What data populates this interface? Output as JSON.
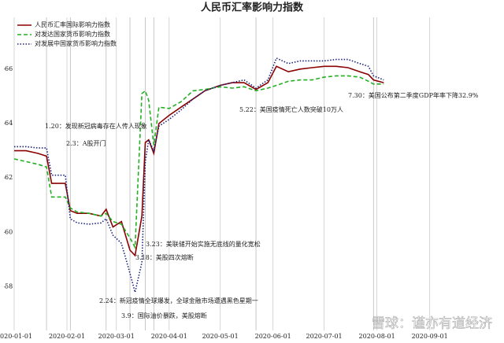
{
  "chart_data": {
    "type": "line",
    "title": "人民币汇率影响力指数",
    "x": [
      "2020-01-01",
      "2020-01-08",
      "2020-01-15",
      "2020-01-20",
      "2020-01-23",
      "2020-01-31",
      "2020-02-03",
      "2020-02-07",
      "2020-02-14",
      "2020-02-21",
      "2020-02-24",
      "2020-02-28",
      "2020-03-04",
      "2020-03-09",
      "2020-03-12",
      "2020-03-16",
      "2020-03-18",
      "2020-03-20",
      "2020-03-23",
      "2020-03-26",
      "2020-04-01",
      "2020-04-08",
      "2020-04-15",
      "2020-04-22",
      "2020-05-01",
      "2020-05-08",
      "2020-05-15",
      "2020-05-22",
      "2020-05-29",
      "2020-06-03",
      "2020-06-10",
      "2020-06-17",
      "2020-06-24",
      "2020-07-01",
      "2020-07-08",
      "2020-07-15",
      "2020-07-22",
      "2020-07-27",
      "2020-07-30",
      "2020-08-05"
    ],
    "series": [
      {
        "name": "人民币汇率国际影响力指数",
        "color": "#8b0000",
        "dash": "solid",
        "values": [
          63.0,
          63.0,
          62.9,
          62.8,
          61.8,
          61.8,
          60.8,
          60.7,
          60.7,
          60.6,
          60.85,
          60.2,
          60.4,
          59.35,
          59.15,
          60.6,
          63.3,
          63.4,
          62.9,
          64.0,
          64.3,
          64.6,
          64.9,
          65.2,
          65.4,
          65.5,
          65.5,
          65.25,
          65.5,
          66.1,
          65.9,
          66.0,
          66.05,
          66.1,
          66.1,
          66.05,
          65.9,
          65.8,
          65.6,
          65.5
        ]
      },
      {
        "name": "对发达国家货币影响力指数",
        "color": "#22b022",
        "dash": "dashed",
        "values": [
          62.7,
          62.6,
          62.5,
          62.4,
          61.3,
          61.3,
          60.9,
          60.75,
          60.7,
          60.6,
          60.7,
          60.4,
          60.3,
          59.8,
          59.45,
          65.1,
          65.2,
          64.85,
          63.2,
          64.6,
          64.55,
          64.8,
          65.2,
          65.25,
          65.35,
          65.3,
          65.35,
          65.2,
          65.3,
          65.4,
          65.55,
          65.6,
          65.6,
          65.7,
          65.75,
          65.75,
          65.7,
          65.55,
          65.45,
          65.45
        ]
      },
      {
        "name": "对发展中国家货币影响力指数",
        "color": "#1a237e",
        "dash": "dotted",
        "values": [
          63.15,
          63.15,
          63.1,
          63.1,
          62.1,
          62.1,
          60.5,
          60.35,
          60.3,
          60.35,
          60.5,
          59.9,
          59.6,
          58.5,
          57.8,
          58.9,
          62.6,
          63.4,
          63.0,
          63.9,
          64.15,
          64.5,
          64.9,
          65.2,
          65.4,
          65.5,
          65.6,
          65.3,
          65.6,
          66.4,
          66.2,
          66.3,
          66.3,
          66.3,
          66.35,
          66.35,
          66.2,
          66.1,
          65.75,
          65.6
        ]
      }
    ],
    "xlim": [
      "2019-12-26",
      "2020-10-10"
    ],
    "xticks": [
      "2020-01-01",
      "2020-02-01",
      "2020-03-01",
      "2020-04-01",
      "2020-05-01",
      "2020-06-01",
      "2020-07-01",
      "2020-08-01",
      "2020-09-01"
    ],
    "ylim": [
      56.4,
      67.9
    ],
    "yticks": [
      58,
      60,
      62,
      64,
      66
    ],
    "legend": "upper left",
    "annotations": [
      {
        "x": "2020-01-20",
        "text": "1.20：发现新冠病毒存在人传人现象"
      },
      {
        "x": "2020-02-03",
        "text": "2.3：A股开门"
      },
      {
        "x": "2020-02-24",
        "text": "2.24：新冠疫情全球爆发，全球金融市场遭遇黑色星期一"
      },
      {
        "x": "2020-03-09",
        "text": "3.9：国际油价暴跌，美股熔断"
      },
      {
        "x": "2020-03-18",
        "text": "3.18：美股四次熔断"
      },
      {
        "x": "2020-03-23",
        "text": "3.23：美联储开始实施无底线的量化宽松"
      },
      {
        "x": "2020-05-22",
        "text": "5.22：美国疫情死亡人数突破10万人"
      },
      {
        "x": "2020-07-30",
        "text": "7.30：美国公布第二季度GDP年率下降32.9%"
      }
    ],
    "watermark": "雪球：谨亦有道经济"
  }
}
